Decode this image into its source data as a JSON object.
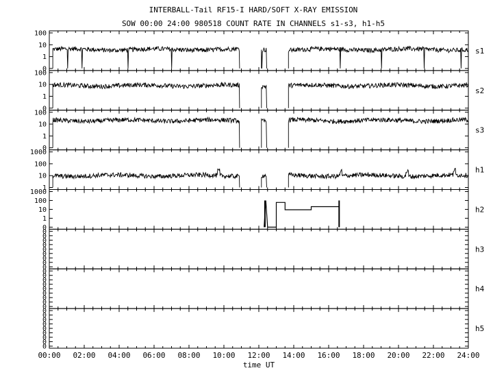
{
  "title": "INTERBALL-Tail RF15-I HARD/SOFT X-RAY EMISSION",
  "subtitle": "SOW 00:00 24:00 980518  COUNT RATE IN CHANNELS s1-s3, h1-h5",
  "chart_data": {
    "type": "line",
    "title": "INTERBALL-Tail RF15-I HARD/SOFT X-RAY EMISSION",
    "subtitle": "SOW 00:00 24:00 980518  COUNT RATE IN CHANNELS s1-s3, h1-h5",
    "xlabel": "time UT",
    "x_ticks": [
      "00:00",
      "02:00",
      "04:00",
      "06:00",
      "08:00",
      "10:00",
      "12:00",
      "14:00",
      "16:00",
      "18:00",
      "20:00",
      "22:00",
      "24:00"
    ],
    "xlim_hours": [
      0,
      24
    ],
    "yscale": "log",
    "panels": [
      {
        "name": "s1",
        "y_ticks": [
          "0",
          "1",
          "10",
          "100"
        ],
        "ylim": [
          0.1,
          100
        ],
        "typical_level": 4,
        "data_intervals_hours": [
          [
            0.2,
            10.9
          ],
          [
            12.15,
            12.45
          ],
          [
            13.7,
            24.0
          ]
        ]
      },
      {
        "name": "s2",
        "y_ticks": [
          "0",
          "1",
          "10",
          "100"
        ],
        "ylim": [
          0.1,
          100
        ],
        "typical_level": 8,
        "data_intervals_hours": [
          [
            0.2,
            10.9
          ],
          [
            12.15,
            12.45
          ],
          [
            13.7,
            24.0
          ]
        ]
      },
      {
        "name": "s3",
        "y_ticks": [
          "0",
          "1",
          "10",
          "100"
        ],
        "ylim": [
          0.1,
          100
        ],
        "typical_level": 20,
        "data_intervals_hours": [
          [
            0.2,
            10.9
          ],
          [
            12.15,
            12.45
          ],
          [
            13.7,
            24.0
          ]
        ]
      },
      {
        "name": "h1",
        "y_ticks": [
          "1",
          "10",
          "100",
          "1000"
        ],
        "ylim": [
          1,
          1000
        ],
        "typical_level": 10,
        "data_intervals_hours": [
          [
            0.2,
            10.9
          ],
          [
            12.15,
            12.45
          ],
          [
            13.7,
            24.0
          ]
        ]
      },
      {
        "name": "h2",
        "y_ticks": [
          "0",
          "1",
          "10",
          "100",
          "1000"
        ],
        "ylim": [
          0.1,
          1000
        ],
        "step_series": [
          [
            12.3,
            0.1
          ],
          [
            12.4,
            100
          ],
          [
            12.5,
            0.1
          ],
          [
            13.0,
            0.1
          ],
          [
            13.0,
            60
          ],
          [
            13.5,
            60
          ],
          [
            13.5,
            9
          ],
          [
            15.0,
            9
          ],
          [
            15.0,
            20
          ],
          [
            16.6,
            20
          ],
          [
            16.6,
            0.1
          ]
        ]
      },
      {
        "name": "h3",
        "y_ticks": [
          "0"
        ],
        "ylim": [
          0,
          1
        ],
        "values": []
      },
      {
        "name": "h4",
        "y_ticks": [
          "0"
        ],
        "ylim": [
          0,
          1
        ],
        "values": []
      },
      {
        "name": "h5",
        "y_ticks": [
          "0"
        ],
        "ylim": [
          0,
          1
        ],
        "values": []
      }
    ]
  }
}
